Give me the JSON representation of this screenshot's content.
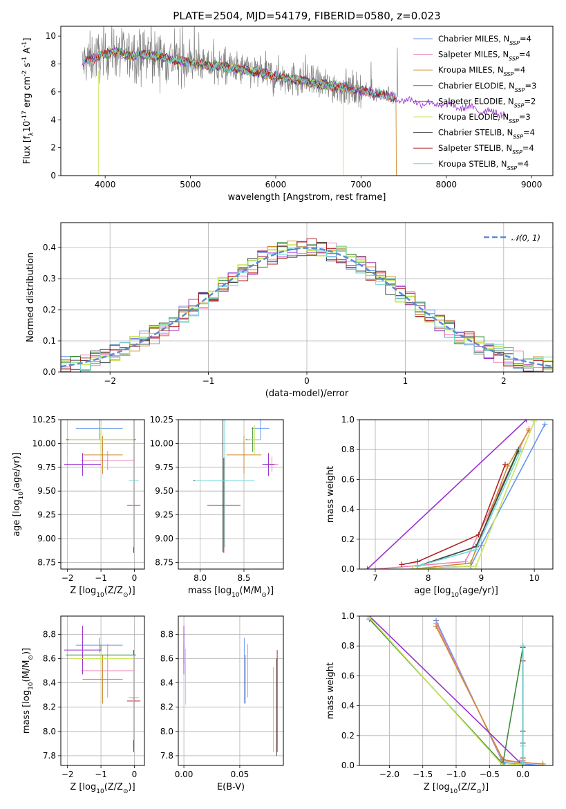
{
  "figure_title": "PLATE=2504, MJD=54179, FIBERID=0580, z=0.023",
  "colors": {
    "Chabrier MILES": "#6495ed",
    "Salpeter MILES": "#ee82b4",
    "Kroupa MILES": "#cd8a2e",
    "Chabrier ELODIE": "#3d8b3d",
    "Salpeter ELODIE": "#9932cc",
    "Kroupa ELODIE": "#c8e65a",
    "Chabrier STELIB": "#444444",
    "Salpeter STELIB": "#b22222",
    "Kroupa STELIB": "#70d8d8",
    "data": "#808080",
    "normal": "#5a8ad8"
  },
  "legend_spectrum": [
    {
      "model": "Chabrier MILES",
      "text": "Chabrier MILES, N",
      "sub": "SSP",
      "tail": "=4"
    },
    {
      "model": "Salpeter MILES",
      "text": "Salpeter MILES, N",
      "sub": "SSP",
      "tail": "=4"
    },
    {
      "model": "Kroupa MILES",
      "text": "Kroupa MILES, N",
      "sub": "SSP",
      "tail": "=4"
    },
    {
      "model": "Chabrier ELODIE",
      "text": "Chabrier ELODIE, N",
      "sub": "SSP",
      "tail": "=3"
    },
    {
      "model": "Salpeter ELODIE",
      "text": "Salpeter ELODIE, N",
      "sub": "SSP",
      "tail": "=2"
    },
    {
      "model": "Kroupa ELODIE",
      "text": "Kroupa ELODIE, N",
      "sub": "SSP",
      "tail": "=3"
    },
    {
      "model": "Chabrier STELIB",
      "text": "Chabrier STELIB, N",
      "sub": "SSP",
      "tail": "=4"
    },
    {
      "model": "Salpeter STELIB",
      "text": "Salpeter STELIB, N",
      "sub": "SSP",
      "tail": "=4"
    },
    {
      "model": "Kroupa STELIB",
      "text": "Kroupa STELIB, N",
      "sub": "SSP",
      "tail": "=4"
    }
  ],
  "legend_hist": "𝒩(0, 1)",
  "chart_data": [
    {
      "id": "spectrum",
      "type": "line",
      "xlabel": "wavelength [Angstrom, rest frame]",
      "ylabel": "Flux [f",
      "ylabel_sub": "λ",
      "ylabel_rest": "10",
      "ylabel_sup1": "-17",
      "ylabel_rest2": " erg cm",
      "ylabel_sup2": "-2",
      "ylabel_rest3": " s",
      "ylabel_sup3": "-1",
      "ylabel_rest4": " A",
      "ylabel_sup4": "-1",
      "ylabel_end": "]",
      "xlim": [
        3480,
        9250
      ],
      "ylim": [
        0,
        10.7
      ],
      "xticks": [
        4000,
        5000,
        6000,
        7000,
        8000,
        9000
      ],
      "yticks": [
        0,
        2,
        4,
        6,
        8,
        10
      ],
      "data_series": {
        "name": "data",
        "x_range": [
          3730,
          7430
        ]
      },
      "model_knots": {
        "x": [
          3730,
          3800,
          3950,
          4100,
          4300,
          4500,
          4800,
          5000,
          5200,
          5500,
          5800,
          6100,
          6400,
          6700,
          7000,
          7200,
          7400,
          7600,
          7900,
          8200,
          8500,
          8700
        ],
        "y": [
          8.0,
          8.3,
          8.6,
          8.9,
          8.6,
          8.7,
          8.3,
          8.1,
          7.9,
          7.7,
          7.4,
          7.0,
          6.7,
          6.4,
          6.1,
          5.9,
          5.6,
          5.3,
          5.1,
          4.9,
          4.6,
          4.4
        ]
      },
      "model_ranges": {
        "Chabrier MILES": [
          3740,
          7410
        ],
        "Salpeter MILES": [
          3740,
          7410
        ],
        "Kroupa MILES": [
          3740,
          7410
        ],
        "Chabrier ELODIE": [
          3900,
          6800
        ],
        "Salpeter ELODIE": [
          3730,
          8700
        ],
        "Kroupa ELODIE": [
          3900,
          6800
        ],
        "Chabrier STELIB": [
          3740,
          7410
        ],
        "Salpeter STELIB": [
          3740,
          7410
        ],
        "Kroupa STELIB": [
          3740,
          7410
        ]
      }
    },
    {
      "id": "residuals",
      "type": "histogram",
      "xlabel": "(data-model)/error",
      "ylabel": "Normed distribution",
      "xlim": [
        -2.5,
        2.5
      ],
      "ylim": [
        0,
        0.48
      ],
      "xticks": [
        -2,
        -1,
        0,
        1,
        2
      ],
      "yticks": [
        0.0,
        0.1,
        0.2,
        0.3,
        0.4
      ],
      "bin_width": 0.1,
      "normal": {
        "mean": 0,
        "sigma": 1
      }
    },
    {
      "id": "age-vs-Z",
      "type": "scatter",
      "xlabel": "Z [log",
      "xlabel_sub": "10",
      "xlabel_rest": "(Z/Z",
      "xlabel_sub2": "⊙",
      "xlabel_end": ")]",
      "ylabel": "age  [log",
      "ylabel_sub": "10",
      "ylabel_rest": "(age/yr)]",
      "xlim": [
        -2.2,
        0.3
      ],
      "ylim": [
        8.68,
        10.25
      ],
      "xticks": [
        -2,
        -1,
        0
      ],
      "yticks": [
        8.75,
        9.0,
        9.25,
        9.5,
        9.75,
        10.0,
        10.25
      ],
      "points": [
        {
          "model": "Chabrier MILES",
          "x": -1.05,
          "xerr": 0.7,
          "y": 10.16,
          "yerr": 0.12
        },
        {
          "model": "Salpeter MILES",
          "x": -0.8,
          "xerr": 0.8,
          "y": 9.82,
          "yerr": 0.1
        },
        {
          "model": "Kroupa MILES",
          "x": -0.95,
          "xerr": 0.6,
          "y": 9.88,
          "yerr": 0.2
        },
        {
          "model": "Chabrier ELODIE",
          "x": -1.0,
          "xerr": 1.05,
          "y": 10.04,
          "yerr": 0.13
        },
        {
          "model": "Salpeter ELODIE",
          "x": -1.55,
          "xerr": 0.55,
          "y": 9.78,
          "yerr": 0.12
        },
        {
          "model": "Kroupa ELODIE",
          "x": -1.0,
          "xerr": 0.95,
          "y": 10.04,
          "yerr": 0.15
        },
        {
          "model": "Chabrier STELIB",
          "x": -0.02,
          "xerr": 0.02,
          "y": 9.61,
          "yerr": 0.75
        },
        {
          "model": "Salpeter STELIB",
          "x": -0.02,
          "xerr": 0.2,
          "y": 9.35,
          "yerr": 0.5
        },
        {
          "model": "Kroupa STELIB",
          "x": -0.02,
          "xerr": 0.15,
          "y": 9.61,
          "yerr": 0.7
        }
      ]
    },
    {
      "id": "age-vs-mass",
      "type": "scatter",
      "xlabel": "mass [log",
      "xlabel_sub": "10",
      "xlabel_rest": "(M/M",
      "xlabel_sub2": "⊙",
      "xlabel_end": ")]",
      "xlim": [
        7.75,
        8.95
      ],
      "ylim": [
        8.68,
        10.25
      ],
      "xticks": [
        8.0,
        8.5
      ],
      "yticks": [
        8.75,
        9.0,
        9.25,
        9.5,
        9.75,
        10.0,
        10.25
      ],
      "points": [
        {
          "model": "Chabrier MILES",
          "x": 8.69,
          "xerr": 0.1,
          "y": 10.16,
          "yerr": 0.12
        },
        {
          "model": "Salpeter MILES",
          "x": 8.82,
          "xerr": 0.07,
          "y": 9.78,
          "yerr": 0.08
        },
        {
          "model": "Kroupa MILES",
          "x": 8.5,
          "xerr": 0.2,
          "y": 9.88,
          "yerr": 0.2
        },
        {
          "model": "Chabrier ELODIE",
          "x": 8.6,
          "xerr": 0.08,
          "y": 10.04,
          "yerr": 0.13
        },
        {
          "model": "Salpeter ELODIE",
          "x": 8.78,
          "xerr": 0.07,
          "y": 9.78,
          "yerr": 0.12
        },
        {
          "model": "Kroupa ELODIE",
          "x": 8.62,
          "xerr": 0.08,
          "y": 10.04,
          "yerr": 0.15
        },
        {
          "model": "Chabrier STELIB",
          "x": 8.26,
          "xerr": 0.34,
          "y": 9.61,
          "yerr": 0.75
        },
        {
          "model": "Salpeter STELIB",
          "x": 8.27,
          "xerr": 0.19,
          "y": 9.35,
          "yerr": 0.5
        },
        {
          "model": "Kroupa STELIB",
          "x": 8.28,
          "xerr": 0.34,
          "y": 9.61,
          "yerr": 0.7
        }
      ]
    },
    {
      "id": "massweight-vs-age",
      "type": "line",
      "xlabel": "age  [log",
      "xlabel_sub": "10",
      "xlabel_rest": "(age/yr)]",
      "ylabel": "mass weight",
      "xlim": [
        6.7,
        10.35
      ],
      "ylim": [
        0,
        1
      ],
      "xticks": [
        7,
        8,
        9,
        10
      ],
      "yticks": [
        0.0,
        0.2,
        0.4,
        0.6,
        0.8,
        1.0
      ],
      "series": [
        {
          "model": "Chabrier MILES",
          "x": [
            7.7,
            8.8,
            9.0,
            10.2
          ],
          "y": [
            0.0,
            0.02,
            0.16,
            0.97
          ]
        },
        {
          "model": "Salpeter MILES",
          "x": [
            7.0,
            8.7,
            9.9
          ],
          "y": [
            0.0,
            0.05,
            0.94
          ]
        },
        {
          "model": "Kroupa MILES",
          "x": [
            7.7,
            8.8,
            9.5,
            9.9
          ],
          "y": [
            0.0,
            0.04,
            0.69,
            0.93
          ]
        },
        {
          "model": "Chabrier ELODIE",
          "x": [
            7.8,
            8.9,
            9.7
          ],
          "y": [
            0.02,
            0.15,
            0.79
          ]
        },
        {
          "model": "Salpeter ELODIE",
          "x": [
            6.85,
            9.85
          ],
          "y": [
            0.0,
            1.0
          ]
        },
        {
          "model": "Kroupa ELODIE",
          "x": [
            7.7,
            8.9,
            10.0
          ],
          "y": [
            0.0,
            0.02,
            0.99
          ]
        },
        {
          "model": "Chabrier STELIB",
          "x": [
            7.8,
            8.9,
            9.7
          ],
          "y": [
            0.02,
            0.15,
            0.8
          ]
        },
        {
          "model": "Salpeter STELIB",
          "x": [
            7.5,
            7.8,
            8.95,
            9.45
          ],
          "y": [
            0.03,
            0.05,
            0.23,
            0.7
          ]
        },
        {
          "model": "Kroupa STELIB",
          "x": [
            7.8,
            8.9,
            9.75
          ],
          "y": [
            0.02,
            0.13,
            0.8
          ]
        }
      ]
    },
    {
      "id": "mass-vs-Z",
      "type": "scatter",
      "xlabel": "Z [log",
      "xlabel_sub": "10",
      "xlabel_rest": "(Z/Z",
      "xlabel_sub2": "⊙",
      "xlabel_end": ")]",
      "ylabel": "mass [log",
      "ylabel_sub": "10",
      "ylabel_rest": "(M/M",
      "ylabel_sub2": "⊙",
      "ylabel_end": ")]",
      "xlim": [
        -2.2,
        0.3
      ],
      "ylim": [
        7.72,
        8.95
      ],
      "xticks": [
        -2,
        -1,
        0
      ],
      "yticks": [
        7.8,
        8.0,
        8.2,
        8.4,
        8.6,
        8.8
      ],
      "points": [
        {
          "model": "Chabrier MILES",
          "x": -1.05,
          "xerr": 0.7,
          "y": 8.71,
          "yerr": 0.06
        },
        {
          "model": "Salpeter MILES",
          "x": -0.8,
          "xerr": 0.8,
          "y": 8.5,
          "yerr": 0.22
        },
        {
          "model": "Kroupa MILES",
          "x": -0.95,
          "xerr": 0.6,
          "y": 8.43,
          "yerr": 0.2
        },
        {
          "model": "Chabrier ELODIE",
          "x": -1.0,
          "xerr": 1.05,
          "y": 8.63,
          "yerr": 0.08
        },
        {
          "model": "Salpeter ELODIE",
          "x": -1.55,
          "xerr": 0.55,
          "y": 8.67,
          "yerr": 0.2
        },
        {
          "model": "Kroupa ELODIE",
          "x": -1.0,
          "xerr": 0.95,
          "y": 8.6,
          "yerr": 0.06
        },
        {
          "model": "Chabrier STELIB",
          "x": -0.02,
          "xerr": 0.02,
          "y": 8.27,
          "yerr": 0.4
        },
        {
          "model": "Salpeter STELIB",
          "x": -0.02,
          "xerr": 0.2,
          "y": 8.25,
          "yerr": 0.42
        },
        {
          "model": "Kroupa STELIB",
          "x": -0.02,
          "xerr": 0.15,
          "y": 8.28,
          "yerr": 0.35
        }
      ]
    },
    {
      "id": "mass-vs-EBV",
      "type": "scatter",
      "xlabel": "E(B-V)",
      "xlim": [
        -0.005,
        0.089
      ],
      "ylim": [
        7.72,
        8.95
      ],
      "xticks": [
        0.0,
        0.05
      ],
      "yticks": [
        7.8,
        8.0,
        8.2,
        8.4,
        8.6,
        8.8
      ],
      "points": [
        {
          "model": "Chabrier MILES",
          "x": 0.054,
          "y": 8.5,
          "yerr": 0.27
        },
        {
          "model": "Salpeter MILES",
          "x": 0.057,
          "y": 8.5,
          "yerr": 0.22
        },
        {
          "model": "Kroupa MILES",
          "x": 0.055,
          "y": 8.43,
          "yerr": 0.2
        },
        {
          "model": "Chabrier ELODIE",
          "x": 0.0,
          "y": 8.63,
          "yerr": 0.08
        },
        {
          "model": "Salpeter ELODIE",
          "x": 0.0,
          "y": 8.67,
          "yerr": 0.2
        },
        {
          "model": "Kroupa ELODIE",
          "x": 0.0015,
          "y": 8.45,
          "yerr": 0.23
        },
        {
          "model": "Chabrier STELIB",
          "x": 0.083,
          "y": 8.2,
          "yerr": 0.4
        },
        {
          "model": "Salpeter STELIB",
          "x": 0.0835,
          "y": 8.25,
          "yerr": 0.42
        },
        {
          "model": "Kroupa STELIB",
          "x": 0.08,
          "y": 8.18,
          "yerr": 0.35
        }
      ]
    },
    {
      "id": "massweight-vs-Z",
      "type": "line",
      "xlabel": "Z [log",
      "xlabel_sub": "10",
      "xlabel_rest": "(Z/Z",
      "xlabel_sub2": "⊙",
      "xlabel_end": ")]",
      "ylabel": "mass weight",
      "xlim": [
        -2.45,
        0.45
      ],
      "ylim": [
        0,
        1
      ],
      "xticks": [
        -2.0,
        -1.5,
        -1.0,
        -0.5,
        0.0
      ],
      "yticks": [
        0.0,
        0.2,
        0.4,
        0.6,
        0.8,
        1.0
      ],
      "series": [
        {
          "model": "Chabrier MILES",
          "x": [
            -1.3,
            -0.3,
            -0.05,
            0.3
          ],
          "y": [
            0.97,
            0.02,
            0.01,
            0.0
          ]
        },
        {
          "model": "Salpeter MILES",
          "x": [
            -1.3,
            -0.3,
            0.3
          ],
          "y": [
            0.95,
            0.03,
            0.01
          ]
        },
        {
          "model": "Kroupa MILES",
          "x": [
            -1.3,
            -0.3,
            -0.05,
            0.3
          ],
          "y": [
            0.93,
            0.04,
            0.02,
            0.01
          ]
        },
        {
          "model": "Chabrier ELODIE",
          "x": [
            -2.3,
            -0.3,
            0.0
          ],
          "y": [
            0.98,
            0.01,
            0.79
          ]
        },
        {
          "model": "Salpeter ELODIE",
          "x": [
            -2.3,
            0.0
          ],
          "y": [
            1.0,
            0.0
          ]
        },
        {
          "model": "Kroupa ELODIE",
          "x": [
            -2.3,
            -0.3,
            0.0
          ],
          "y": [
            0.99,
            0.0,
            0.01
          ]
        },
        {
          "model": "Chabrier STELIB",
          "x": [
            0.0,
            0.0,
            0.0
          ],
          "y": [
            0.02,
            0.15,
            0.8
          ]
        },
        {
          "model": "Salpeter STELIB",
          "x": [
            0.0,
            0.0,
            0.0,
            0.0
          ],
          "y": [
            0.03,
            0.23,
            0.7,
            0.05
          ]
        },
        {
          "model": "Kroupa STELIB",
          "x": [
            0.0,
            0.0,
            0.0
          ],
          "y": [
            0.02,
            0.13,
            0.8
          ]
        }
      ]
    }
  ]
}
